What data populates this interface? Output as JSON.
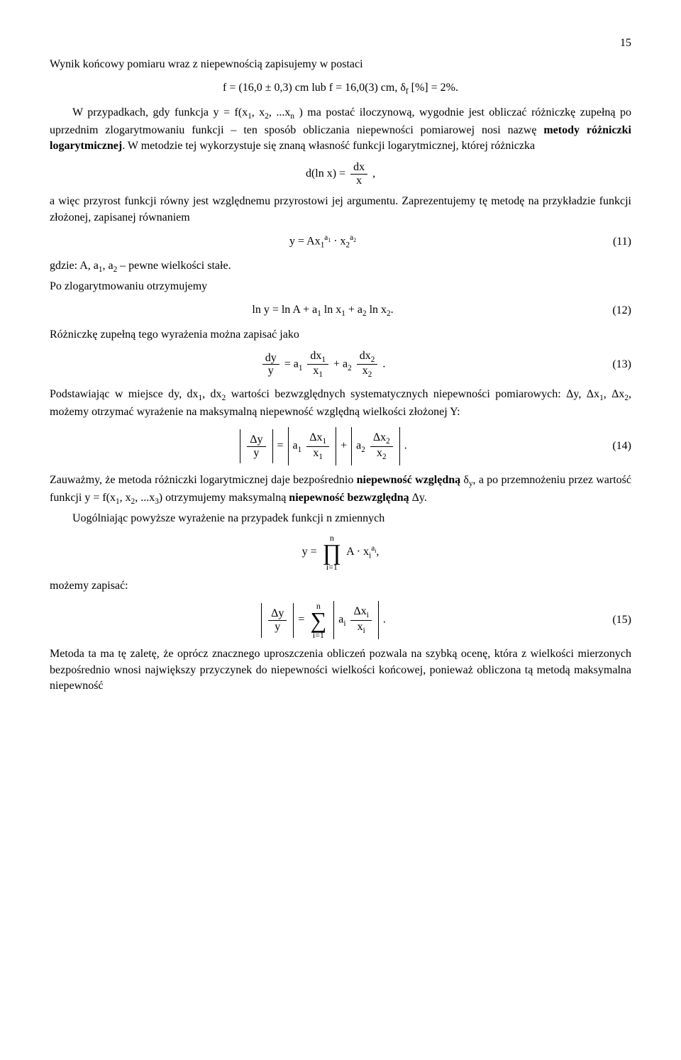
{
  "page_number": "15",
  "p1": "Wynik końcowy pomiaru wraz z niepewnością zapisujemy w postaci",
  "eq_res": "f = (16,0 ± 0,3) cm  lub  f = 16,0(3) cm,  δ",
  "eq_res_sub": "f",
  "eq_res_tail": " [%] = 2%.",
  "p2a": "W przypadkach, gdy funkcja y = f(x",
  "p2b": ", x",
  "p2c": ", ...x",
  "p2d": " ) ma postać iloczynową, wygodnie jest obliczać różniczkę zupełną po uprzednim zlogarytmowaniu funkcji – ten sposób obliczania niepewności pomiarowej nosi nazwę ",
  "p2e": "metody różniczki logarytmicznej",
  "p2f": ". W metodzie tej wykorzystuje się znaną własność funkcji logarytmicznej, której różniczka",
  "eq_dln_l": "d(ln x) =",
  "eq_dln_num": "dx",
  "eq_dln_den": "x",
  "p3": "a więc przyrost funkcji równy jest względnemu przyrostowi jej argumentu. Zaprezentujemy tę metodę na przykładzie funkcji złożonej, zapisanej równaniem",
  "eq11_l": "y = Ax",
  "eq11_s1": "a",
  "eq11_sub1": "1",
  "eq11_m": " · x",
  "eq11_s2": "a",
  "eq11_sub2": "2",
  "eq11_num": "(11)",
  "p4a": "gdzie: A, a",
  "p4b": ", a",
  "p4c": " – pewne wielkości stałe.",
  "p5": "Po zlogarytmowaniu otrzymujemy",
  "eq12": "ln y = ln A + a",
  "eq12_m1": " ln x",
  "eq12_m2": " + a",
  "eq12_m3": " ln x",
  "eq12_tail": ".",
  "eq12_num": "(12)",
  "p6": "Różniczkę zupełną tego wyrażenia można zapisać jako",
  "eq13_num": "(13)",
  "dy": "dy",
  "y": "y",
  "eq_eq": " = a",
  "dx1": "dx",
  "x1": "x",
  "eq_plus_a": " + a",
  "dx2": "dx",
  "x2": "x",
  "dot": ".",
  "p7a": "Podstawiając w miejsce dy, dx",
  "p7b": ", dx",
  "p7c": " wartości bezwzględnych systematycznych niepewności pomiarowych: Δy, Δx",
  "p7d": ", Δx",
  "p7e": ", możemy otrzymać wyrażenie na maksymalną niepewność względną wielkości złożonej Y:",
  "eq14_num": "(14)",
  "Dy": "Δy",
  "Dx": "Δx",
  "a": "a",
  "p8a": "Zauważmy, że metoda różniczki logarytmicznej daje bezpośrednio ",
  "p8b": "niepewność względną",
  "p8c": " δ",
  "p8d": ", a po przemnożeniu przez wartość funkcji y = f(x",
  "p8e": ", x",
  "p8f": ", ...x",
  "p8g": ") otrzymujemy maksymalną ",
  "p8h": "niepewność bezwzględną",
  "p8i": " Δy.",
  "p9": "Uogólniając powyższe wyrażenie na przypadek funkcji n zmiennych",
  "eq_prod_l": "y = ",
  "eq_prod_top": "n",
  "eq_prod_mid": "∏",
  "eq_prod_bot": "i=1",
  "eq_prod_r": "A · x",
  "eq_prod_sup": "a",
  "eq_prod_sub": "i",
  "eq_prod_tail": ",",
  "p10": "możemy zapisać:",
  "eq15_num": "(15)",
  "eq_sum_top": "n",
  "eq_sum_mid": "∑",
  "eq_sum_bot": "i=1",
  "p11": "Metoda ta ma tę zaletę, że oprócz znacznego uproszczenia obliczeń pozwala na szybką ocenę, która z wielkości mierzonych bezpośrednio wnosi największy przyczynek do niepewności wielkości końcowej, ponieważ obliczona tą metodą maksymalna niepewność",
  "sub1": "1",
  "sub2": "2",
  "sub3": "3",
  "subn": "n",
  "subi": "i",
  "suby": "y"
}
